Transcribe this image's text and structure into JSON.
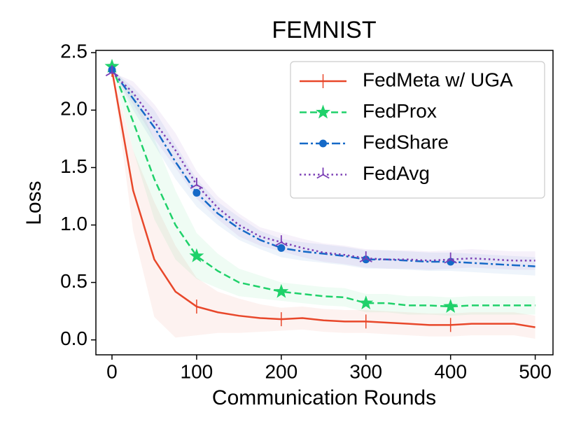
{
  "chart_data": {
    "type": "line",
    "title": "FEMNIST",
    "xlabel": "Communication Rounds",
    "ylabel": "Loss",
    "x": [
      0,
      25,
      50,
      75,
      100,
      125,
      150,
      175,
      200,
      225,
      250,
      275,
      300,
      325,
      350,
      375,
      400,
      425,
      450,
      475,
      500
    ],
    "series": [
      {
        "name": "FedMeta w/ UGA",
        "color": "#e8472a",
        "linestyle": "solid",
        "marker": "vline",
        "values": [
          2.35,
          1.3,
          0.7,
          0.42,
          0.29,
          0.24,
          0.21,
          0.19,
          0.18,
          0.19,
          0.17,
          0.16,
          0.16,
          0.15,
          0.14,
          0.13,
          0.13,
          0.14,
          0.14,
          0.14,
          0.11
        ],
        "spread": [
          0,
          0.35,
          0.5,
          0.4,
          0.25,
          0.18,
          0.15,
          0.12,
          0.1,
          0.1,
          0.1,
          0.1,
          0.1,
          0.1,
          0.1,
          0.1,
          0.1,
          0.1,
          0.1,
          0.1,
          0.1
        ]
      },
      {
        "name": "FedProx",
        "color": "#1fd16a",
        "linestyle": "dashed",
        "marker": "star",
        "values": [
          2.38,
          1.9,
          1.4,
          1.0,
          0.73,
          0.6,
          0.5,
          0.46,
          0.42,
          0.4,
          0.38,
          0.37,
          0.32,
          0.32,
          0.3,
          0.3,
          0.29,
          0.3,
          0.3,
          0.3,
          0.3
        ],
        "spread": [
          0,
          0.25,
          0.35,
          0.3,
          0.2,
          0.15,
          0.12,
          0.1,
          0.08,
          0.08,
          0.08,
          0.08,
          0.08,
          0.08,
          0.08,
          0.08,
          0.08,
          0.08,
          0.08,
          0.08,
          0.08
        ]
      },
      {
        "name": "FedShare",
        "color": "#1569c7",
        "linestyle": "dashdot",
        "marker": "circle",
        "values": [
          2.35,
          2.1,
          1.85,
          1.55,
          1.28,
          1.1,
          0.97,
          0.87,
          0.8,
          0.77,
          0.75,
          0.73,
          0.7,
          0.7,
          0.69,
          0.68,
          0.68,
          0.67,
          0.66,
          0.65,
          0.64
        ],
        "spread": [
          0,
          0.1,
          0.15,
          0.15,
          0.12,
          0.1,
          0.1,
          0.08,
          0.08,
          0.08,
          0.08,
          0.08,
          0.08,
          0.08,
          0.08,
          0.08,
          0.08,
          0.08,
          0.08,
          0.08,
          0.08
        ]
      },
      {
        "name": "FedAvg",
        "color": "#7b3fb5",
        "linestyle": "dotted",
        "marker": "tri_down",
        "values": [
          2.33,
          2.15,
          1.9,
          1.65,
          1.35,
          1.15,
          1.0,
          0.9,
          0.85,
          0.8,
          0.76,
          0.74,
          0.71,
          0.7,
          0.7,
          0.69,
          0.7,
          0.71,
          0.7,
          0.69,
          0.69
        ],
        "spread": [
          0,
          0.1,
          0.15,
          0.15,
          0.12,
          0.1,
          0.1,
          0.08,
          0.08,
          0.08,
          0.08,
          0.08,
          0.08,
          0.08,
          0.08,
          0.08,
          0.08,
          0.08,
          0.08,
          0.08,
          0.08
        ]
      }
    ],
    "markevery": 100,
    "xlim": [
      -19,
      521
    ],
    "xticks": [
      0,
      100,
      200,
      300,
      400,
      500
    ],
    "ylim": [
      -0.13,
      2.52
    ],
    "yticks": [
      {
        "value": 0,
        "label": "0.0"
      },
      {
        "value": 0.5,
        "label": "0.5"
      },
      {
        "value": 1,
        "label": "1.0"
      },
      {
        "value": 1.5,
        "label": "1.5"
      },
      {
        "value": 2,
        "label": "2.0"
      },
      {
        "value": 2.5,
        "label": "2.5"
      }
    ],
    "legend": "upper right",
    "grid": false
  }
}
